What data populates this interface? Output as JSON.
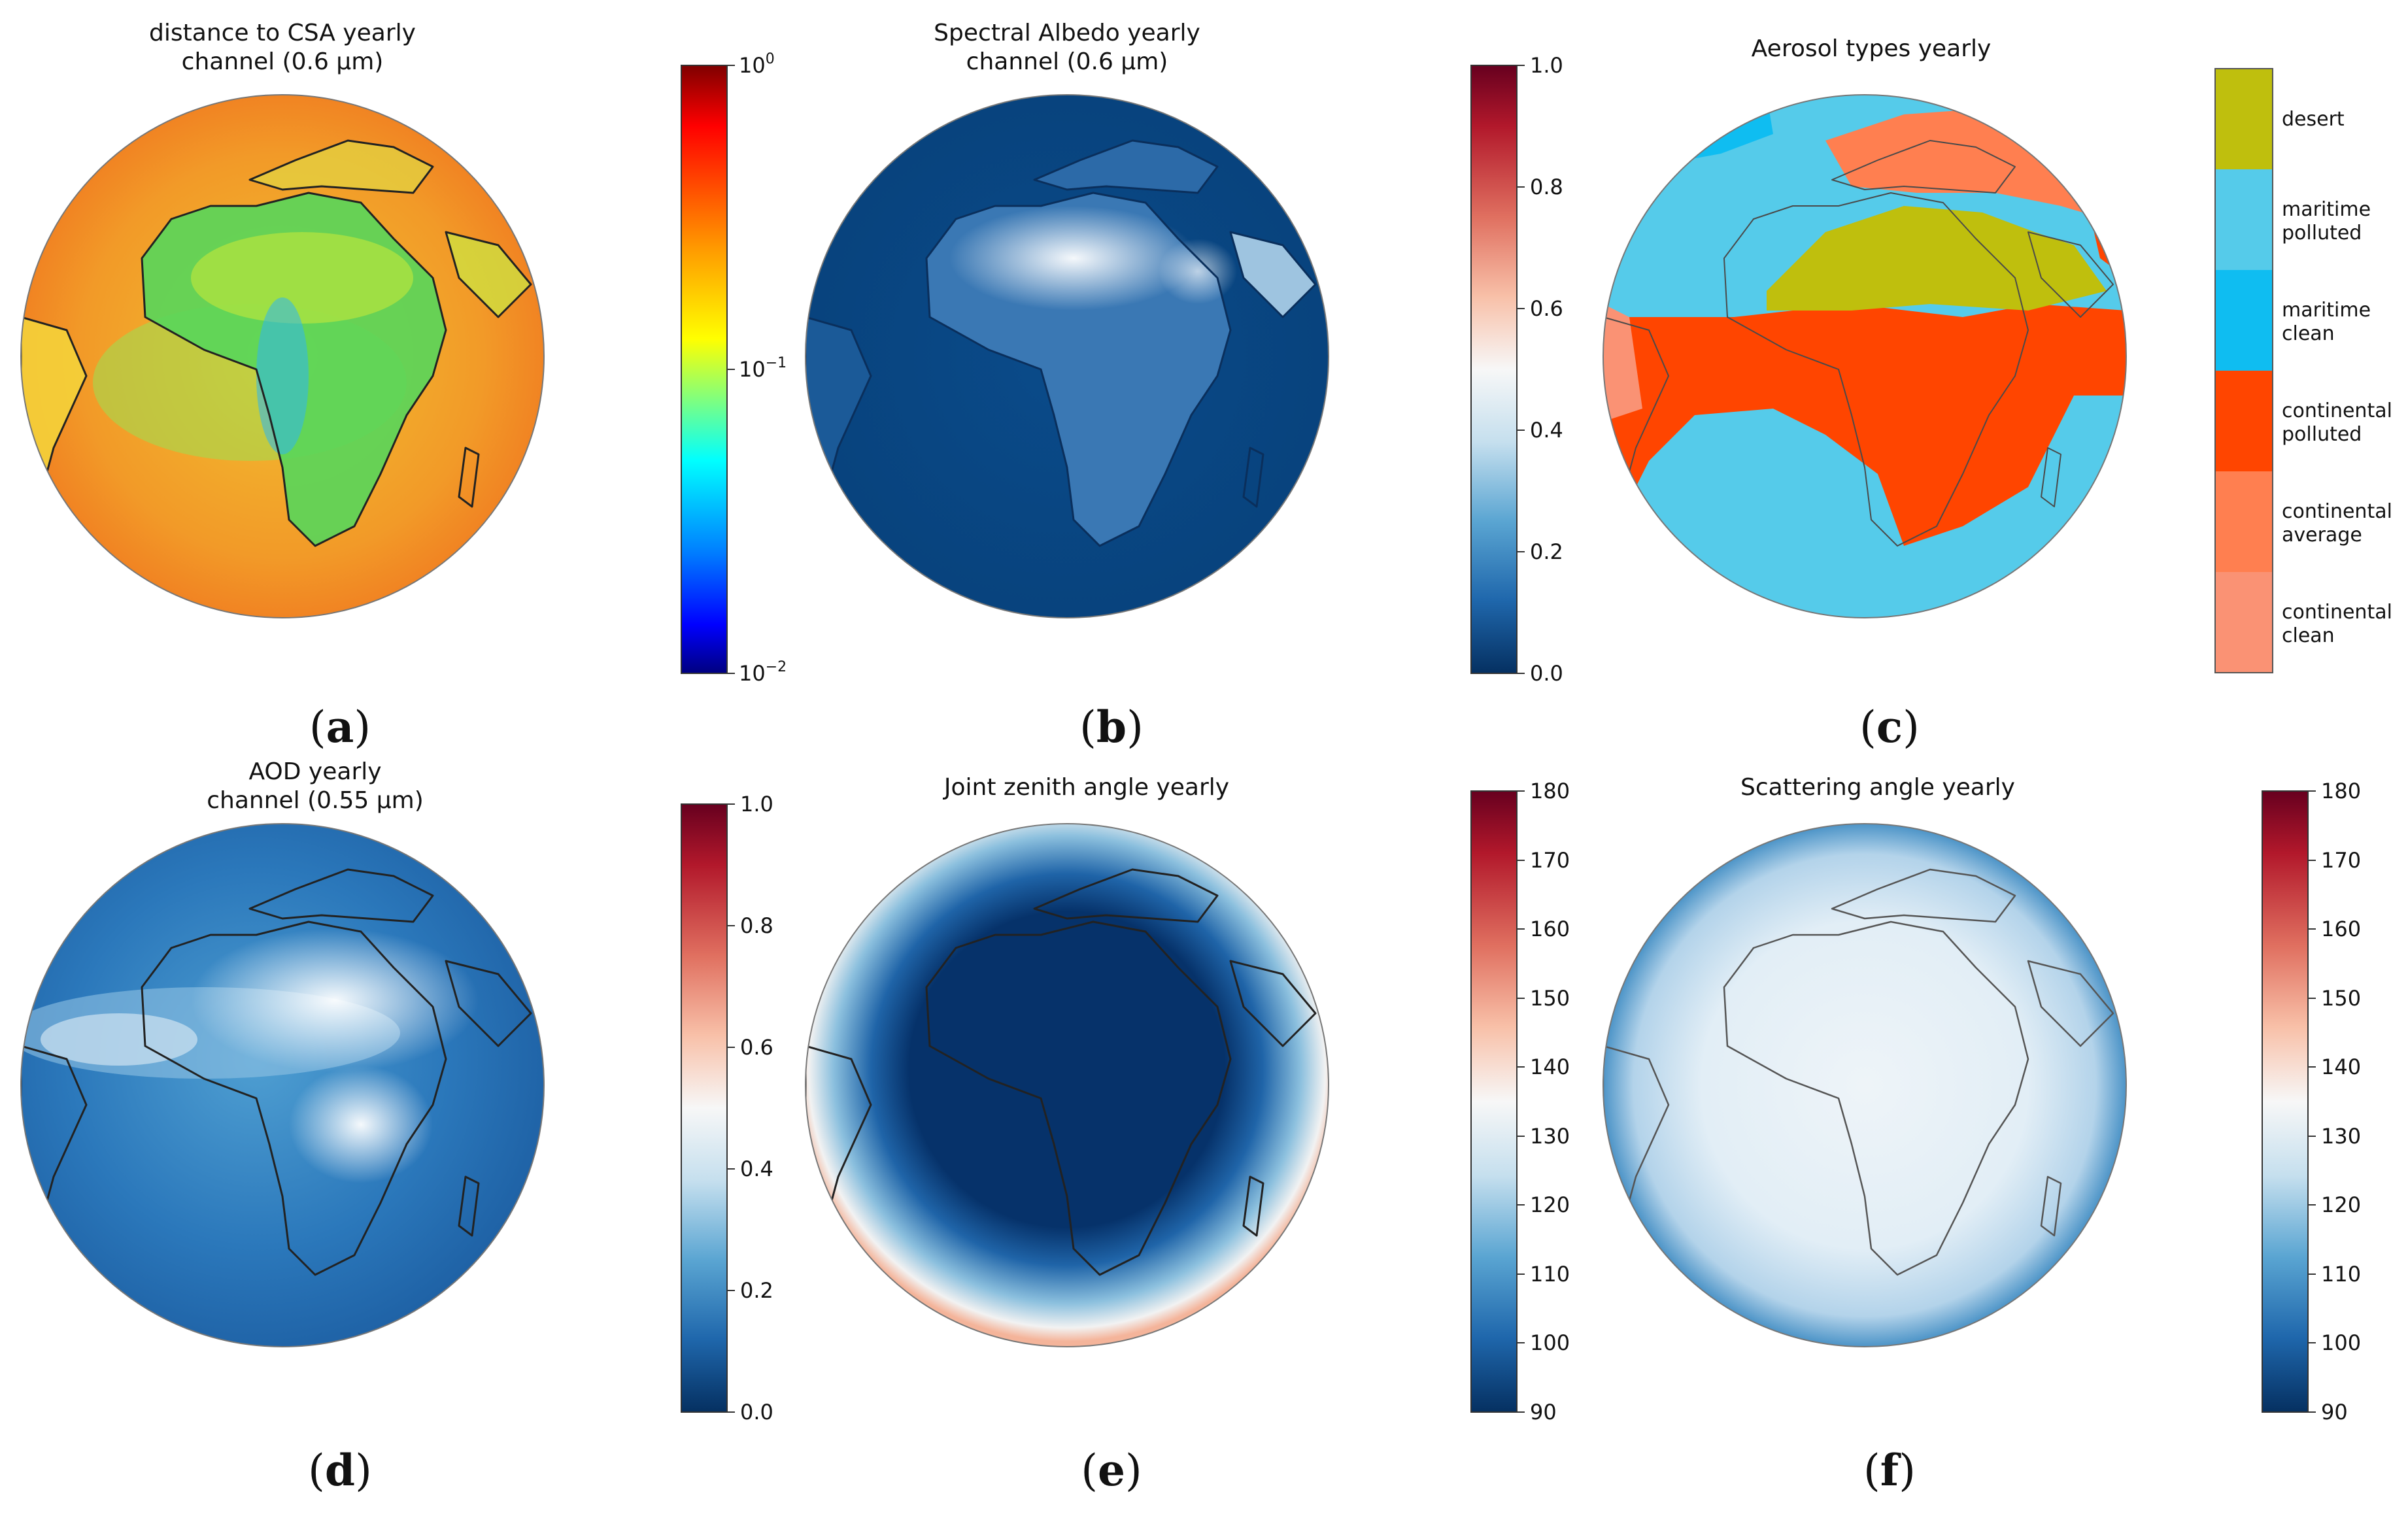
{
  "panels": [
    {
      "id": "a",
      "title_lines": [
        "distance to CSA yearly",
        "channel (0.6 μm)"
      ],
      "label_letter": "a",
      "colorbar": {
        "scale": "log",
        "ticks": [
          "10",
          "10",
          "10"
        ],
        "exponents": [
          "0",
          "−1",
          "−2"
        ],
        "colormap": "jet"
      }
    },
    {
      "id": "b",
      "title_lines": [
        "Spectral Albedo yearly",
        "channel (0.6 μm)"
      ],
      "label_letter": "b",
      "colorbar": {
        "scale": "linear",
        "min": 0.0,
        "max": 1.0,
        "ticks": [
          "1.0",
          "0.8",
          "0.6",
          "0.4",
          "0.2",
          "0.0"
        ],
        "colormap": "RdBu_r"
      }
    },
    {
      "id": "c",
      "title_lines": [
        "Aerosol types yearly"
      ],
      "label_letter": "c",
      "legend": [
        {
          "lines": [
            "desert"
          ],
          "color": "#bfbf0d"
        },
        {
          "lines": [
            "maritime",
            "polluted"
          ],
          "color": "#55cbea"
        },
        {
          "lines": [
            "maritime",
            "clean"
          ],
          "color": "#0fbdf1"
        },
        {
          "lines": [
            "continental",
            "polluted"
          ],
          "color": "#ff4500"
        },
        {
          "lines": [
            "continental",
            "average"
          ],
          "color": "#ff7f50"
        },
        {
          "lines": [
            "continental",
            "clean"
          ],
          "color": "#fa9274"
        }
      ]
    },
    {
      "id": "d",
      "title_lines": [
        "AOD yearly",
        "channel (0.55 μm)"
      ],
      "label_letter": "d",
      "colorbar": {
        "scale": "linear",
        "min": 0.0,
        "max": 1.0,
        "ticks": [
          "1.0",
          "0.8",
          "0.6",
          "0.4",
          "0.2",
          "0.0"
        ],
        "colormap": "RdBu_r"
      }
    },
    {
      "id": "e",
      "title_lines": [
        "Joint zenith angle yearly"
      ],
      "label_letter": "e",
      "colorbar": {
        "scale": "linear",
        "min": 90,
        "max": 180,
        "ticks": [
          "180",
          "170",
          "160",
          "150",
          "140",
          "130",
          "120",
          "110",
          "100",
          "90"
        ],
        "colormap": "RdBu_r"
      }
    },
    {
      "id": "f",
      "title_lines": [
        "Scattering angle yearly"
      ],
      "label_letter": "f",
      "colorbar": {
        "scale": "linear",
        "min": 90,
        "max": 180,
        "ticks": [
          "180",
          "170",
          "160",
          "150",
          "140",
          "130",
          "120",
          "110",
          "100",
          "90"
        ],
        "colormap": "RdBu_r"
      }
    }
  ],
  "colors": {
    "jet": [
      "#7f0000",
      "#ff0000",
      "#ff7f00",
      "#ffff00",
      "#7fff7f",
      "#00ffff",
      "#007fff",
      "#0000ff",
      "#00007f"
    ],
    "rdbu_r": [
      "#67001f",
      "#b2182b",
      "#d6604d",
      "#f4a582",
      "#fddbc7",
      "#f7f7f7",
      "#d1e5f0",
      "#92c5de",
      "#4393c3",
      "#2166ac",
      "#053061"
    ]
  }
}
